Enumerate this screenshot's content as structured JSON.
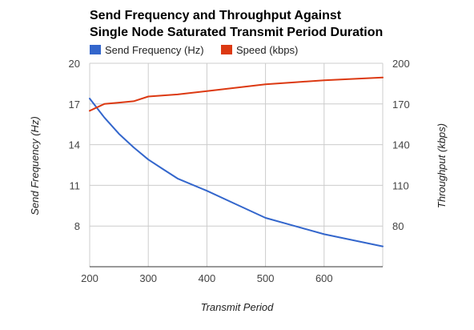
{
  "chart_data": {
    "type": "line",
    "title_lines": [
      "Send Frequency and Throughput Against",
      "Single Node Saturated Transmit Period Duration"
    ],
    "xlabel": "Transmit Period",
    "ylabel_left": "Send Frequency (Hz)",
    "ylabel_right": "Throughput (kbps)",
    "xlim": [
      200,
      700
    ],
    "ylim_left": [
      5,
      20
    ],
    "ylim_right": [
      50,
      200
    ],
    "x_ticks": [
      "200",
      "300",
      "400",
      "500",
      "600"
    ],
    "x_tick_values": [
      200,
      300,
      400,
      500,
      600
    ],
    "y_ticks_left": [
      "8",
      "11",
      "14",
      "17",
      "20"
    ],
    "y_tick_values_left": [
      8,
      11,
      14,
      17,
      20
    ],
    "y_ticks_right": [
      "80",
      "110",
      "140",
      "170",
      "200"
    ],
    "y_tick_values_right": [
      80,
      110,
      140,
      170,
      200
    ],
    "grid": true,
    "legend_position": "top",
    "series": [
      {
        "name": "Send Frequency (Hz)",
        "axis": "left",
        "color": "#3366cc",
        "x": [
          200,
          225,
          250,
          275,
          300,
          325,
          350,
          400,
          450,
          500,
          550,
          600,
          650,
          700
        ],
        "values": [
          17.4,
          16.0,
          14.8,
          13.8,
          12.9,
          12.2,
          11.5,
          10.6,
          9.6,
          8.6,
          8.0,
          7.4,
          6.95,
          6.5
        ]
      },
      {
        "name": "Speed (kbps)",
        "axis": "right",
        "color": "#dc3912",
        "x": [
          200,
          225,
          250,
          275,
          300,
          350,
          400,
          450,
          500,
          550,
          600,
          650,
          700
        ],
        "values": [
          165,
          170,
          171,
          172,
          175.5,
          177,
          179.5,
          182,
          184.5,
          186,
          187.5,
          188.5,
          189.5
        ]
      }
    ]
  }
}
